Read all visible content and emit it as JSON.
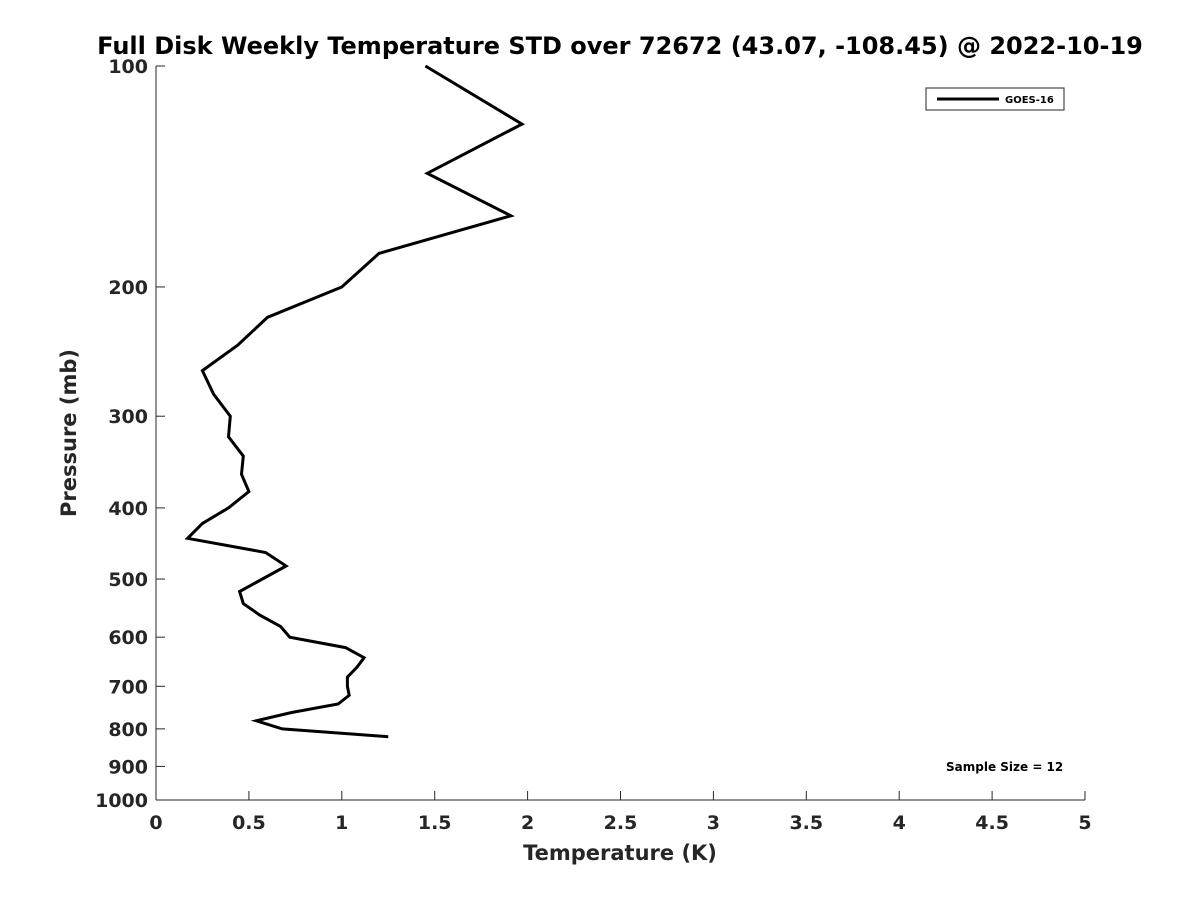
{
  "chart_data": {
    "type": "line",
    "title": "Full Disk Weekly Temperature STD over 72672 (43.07, -108.45) @ 2022-10-19",
    "xlabel": "Temperature (K)",
    "ylabel": "Pressure (mb)",
    "xlim": [
      0,
      5
    ],
    "ylim": [
      100,
      1000
    ],
    "y_scale": "log",
    "y_reversed": true,
    "x_ticks": [
      "0",
      "0.5",
      "1",
      "1.5",
      "2",
      "2.5",
      "3",
      "3.5",
      "4",
      "4.5",
      "5"
    ],
    "y_ticks": [
      "100",
      "200",
      "300",
      "400",
      "500",
      "600",
      "700",
      "800",
      "900",
      "1000"
    ],
    "grid": false,
    "legend_position": "top-right",
    "annotation": "Sample Size = 12",
    "series": [
      {
        "name": "GOES-16",
        "color": "#000000",
        "points": [
          [
            1.45,
            100
          ],
          [
            1.97,
            120
          ],
          [
            1.46,
            140
          ],
          [
            1.91,
            160
          ],
          [
            1.2,
            180
          ],
          [
            1.0,
            200
          ],
          [
            0.6,
            220
          ],
          [
            0.44,
            240
          ],
          [
            0.25,
            260
          ],
          [
            0.31,
            280
          ],
          [
            0.4,
            300
          ],
          [
            0.39,
            320
          ],
          [
            0.47,
            340
          ],
          [
            0.46,
            360
          ],
          [
            0.5,
            380
          ],
          [
            0.39,
            400
          ],
          [
            0.25,
            420
          ],
          [
            0.17,
            440
          ],
          [
            0.59,
            460
          ],
          [
            0.7,
            480
          ],
          [
            0.45,
            520
          ],
          [
            0.47,
            540
          ],
          [
            0.56,
            560
          ],
          [
            0.67,
            580
          ],
          [
            0.72,
            600
          ],
          [
            1.02,
            620
          ],
          [
            1.12,
            640
          ],
          [
            1.08,
            660
          ],
          [
            1.03,
            680
          ],
          [
            1.03,
            700
          ],
          [
            1.04,
            720
          ],
          [
            0.98,
            740
          ],
          [
            0.73,
            760
          ],
          [
            0.54,
            780
          ],
          [
            0.68,
            800
          ],
          [
            1.25,
            820
          ]
        ]
      }
    ]
  }
}
